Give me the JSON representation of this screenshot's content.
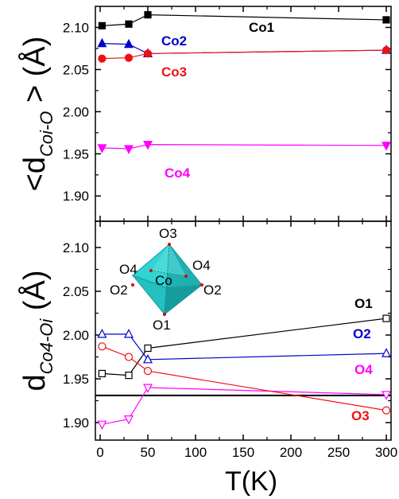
{
  "chart_data": [
    {
      "type": "line",
      "panel": "top",
      "ylabel_main": "<d",
      "ylabel_sub": "Coi-O",
      "ylabel_tail": "> (Å)",
      "xlim": [
        -5,
        305
      ],
      "ylim": [
        1.87,
        2.125
      ],
      "yticks": [
        1.9,
        1.95,
        2.0,
        2.05,
        2.1
      ],
      "ytick_labels": [
        "1.90",
        "1.95",
        "2.00",
        "2.05",
        "2.10"
      ],
      "series": [
        {
          "name": "Co1",
          "color": "#000000",
          "marker": "square-filled",
          "x": [
            2,
            30,
            50,
            300
          ],
          "y": [
            2.102,
            2.104,
            2.115,
            2.109
          ]
        },
        {
          "name": "Co2",
          "color": "#0000cc",
          "marker": "triangle-up-filled",
          "x": [
            2,
            30,
            50,
            300
          ],
          "y": [
            2.081,
            2.08,
            2.069,
            2.073
          ]
        },
        {
          "name": "Co3",
          "color": "#ee1111",
          "marker": "circle-filled",
          "x": [
            2,
            30,
            50,
            300
          ],
          "y": [
            2.063,
            2.064,
            2.069,
            2.073
          ]
        },
        {
          "name": "Co4",
          "color": "#ff00ff",
          "marker": "triangle-down-filled",
          "x": [
            2,
            30,
            50,
            300
          ],
          "y": [
            1.957,
            1.956,
            1.961,
            1.96
          ]
        }
      ]
    },
    {
      "type": "line",
      "panel": "bottom",
      "ylabel_main": "d",
      "ylabel_sub": "Co4-Oi",
      "ylabel_tail": "(Å)",
      "xlabel": "T(K)",
      "xlim": [
        -5,
        305
      ],
      "ylim": [
        1.88,
        2.13
      ],
      "xticks": [
        0,
        50,
        100,
        150,
        200,
        250,
        300
      ],
      "xtick_labels": [
        "0",
        "50",
        "100",
        "150",
        "200",
        "250",
        "300"
      ],
      "yticks": [
        1.9,
        1.95,
        2.0,
        2.05,
        2.1
      ],
      "ytick_labels": [
        "1.90",
        "1.95",
        "2.00",
        "2.05",
        "2.10"
      ],
      "reference_line_y": 1.931,
      "series": [
        {
          "name": "O1",
          "color": "#000000",
          "marker": "square-open",
          "x": [
            2,
            30,
            50,
            300
          ],
          "y": [
            1.956,
            1.954,
            1.985,
            2.019
          ]
        },
        {
          "name": "O2",
          "color": "#0000cc",
          "marker": "triangle-up-open",
          "x": [
            2,
            30,
            50,
            300
          ],
          "y": [
            2.001,
            2.001,
            1.972,
            1.979
          ]
        },
        {
          "name": "O4",
          "color": "#ff00ff",
          "marker": "triangle-down-open",
          "x": [
            2,
            30,
            50,
            300
          ],
          "y": [
            1.898,
            1.904,
            1.94,
            1.932
          ]
        },
        {
          "name": "O3",
          "color": "#ee1111",
          "marker": "circle-open",
          "x": [
            2,
            30,
            50,
            300
          ],
          "y": [
            1.987,
            1.975,
            1.959,
            1.914
          ]
        }
      ],
      "inset": {
        "center_label": "Co",
        "vertex_labels": [
          "O3",
          "O4",
          "O4",
          "O2",
          "O2",
          "O1"
        ],
        "fill_color": "#2ec8c8"
      }
    }
  ]
}
